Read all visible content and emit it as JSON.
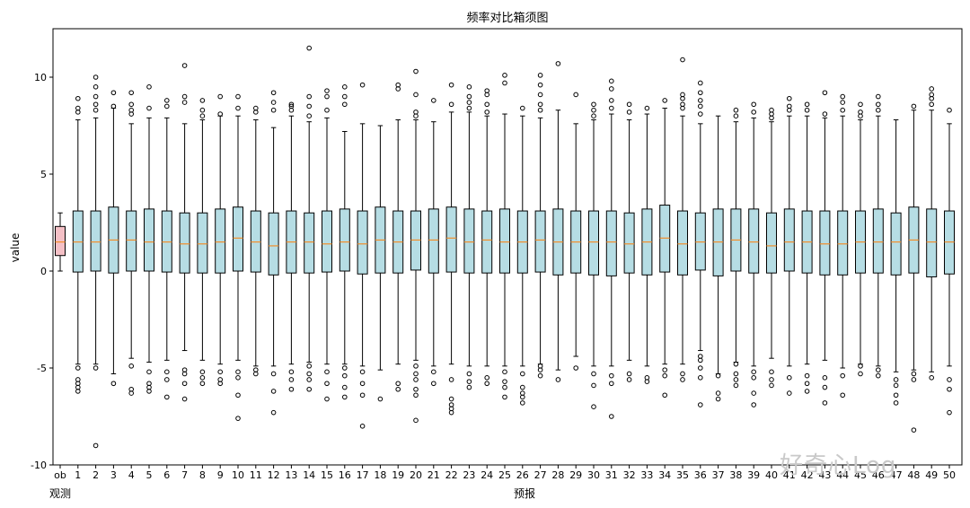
{
  "chart_data": {
    "type": "boxplot",
    "title": "频率对比箱须图",
    "ylabel": "value",
    "xlabel_left": "观测",
    "xlabel_center": "预报",
    "ylim": [
      -10,
      12.5
    ],
    "yticks": [
      -10,
      -5,
      0,
      5,
      10
    ],
    "colors": {
      "observed_fill": "#f4c0c6",
      "forecast_fill": "#b6dde4",
      "median": "#f28e2b",
      "frame": "#000000"
    },
    "categories": [
      "ob",
      "1",
      "2",
      "3",
      "4",
      "5",
      "6",
      "7",
      "8",
      "9",
      "10",
      "11",
      "12",
      "13",
      "14",
      "15",
      "16",
      "17",
      "18",
      "19",
      "20",
      "21",
      "22",
      "23",
      "24",
      "25",
      "26",
      "27",
      "28",
      "29",
      "30",
      "31",
      "32",
      "33",
      "34",
      "35",
      "36",
      "37",
      "38",
      "39",
      "40",
      "41",
      "42",
      "43",
      "44",
      "45",
      "46",
      "47",
      "48",
      "49",
      "50"
    ],
    "boxes": [
      {
        "label": "ob",
        "min": 0.0,
        "q1": 0.8,
        "median": 1.5,
        "q3": 2.3,
        "max": 3.0,
        "outliers": []
      },
      {
        "label": "1",
        "min": -4.8,
        "q1": -0.05,
        "median": 1.5,
        "q3": 3.1,
        "max": 7.8,
        "outliers": [
          8.2,
          8.4,
          8.9,
          -5.0,
          -5.6,
          -5.8,
          -6.0,
          -6.2
        ]
      },
      {
        "label": "2",
        "min": -4.8,
        "q1": 0.0,
        "median": 1.5,
        "q3": 3.1,
        "max": 7.9,
        "outliers": [
          8.3,
          8.6,
          9.0,
          9.5,
          10.0,
          -5.0,
          -9.0
        ]
      },
      {
        "label": "3",
        "min": -5.3,
        "q1": -0.1,
        "median": 1.6,
        "q3": 3.3,
        "max": 8.4,
        "outliers": [
          8.5,
          9.2,
          -5.8
        ]
      },
      {
        "label": "4",
        "min": -4.5,
        "q1": 0.0,
        "median": 1.6,
        "q3": 3.1,
        "max": 7.6,
        "outliers": [
          8.1,
          8.3,
          8.6,
          9.2,
          -4.9,
          -6.1,
          -6.3
        ]
      },
      {
        "label": "5",
        "min": -4.7,
        "q1": 0.0,
        "median": 1.5,
        "q3": 3.2,
        "max": 7.9,
        "outliers": [
          8.4,
          9.5,
          -5.2,
          -5.8,
          -6.0,
          -6.2
        ]
      },
      {
        "label": "6",
        "min": -4.6,
        "q1": -0.05,
        "median": 1.5,
        "q3": 3.1,
        "max": 7.9,
        "outliers": [
          8.5,
          8.8,
          -5.2,
          -5.6,
          -6.5
        ]
      },
      {
        "label": "7",
        "min": -4.1,
        "q1": -0.1,
        "median": 1.4,
        "q3": 3.0,
        "max": 7.6,
        "outliers": [
          8.7,
          9.0,
          10.6,
          -5.1,
          -5.3,
          -5.8,
          -6.6
        ]
      },
      {
        "label": "8",
        "min": -4.6,
        "q1": -0.1,
        "median": 1.4,
        "q3": 3.0,
        "max": 7.8,
        "outliers": [
          8.0,
          8.3,
          8.8,
          -5.2,
          -5.5,
          -5.8
        ]
      },
      {
        "label": "9",
        "min": -4.8,
        "q1": -0.1,
        "median": 1.5,
        "q3": 3.2,
        "max": 8.0,
        "outliers": [
          8.1,
          9.0,
          -5.2,
          -5.6,
          -5.8
        ]
      },
      {
        "label": "10",
        "min": -4.6,
        "q1": 0.0,
        "median": 1.7,
        "q3": 3.3,
        "max": 8.0,
        "outliers": [
          8.4,
          9.0,
          -5.2,
          -5.5,
          -6.4,
          -7.6
        ]
      },
      {
        "label": "11",
        "min": -4.9,
        "q1": -0.05,
        "median": 1.5,
        "q3": 3.1,
        "max": 7.8,
        "outliers": [
          8.2,
          8.4,
          -5.1,
          -5.3
        ]
      },
      {
        "label": "12",
        "min": -4.9,
        "q1": -0.2,
        "median": 1.3,
        "q3": 3.0,
        "max": 7.4,
        "outliers": [
          8.3,
          8.7,
          9.2,
          -5.3,
          -6.2,
          -7.3
        ]
      },
      {
        "label": "13",
        "min": -4.8,
        "q1": -0.1,
        "median": 1.5,
        "q3": 3.1,
        "max": 8.0,
        "outliers": [
          8.3,
          8.5,
          8.6,
          -5.2,
          -5.6,
          -6.1
        ]
      },
      {
        "label": "14",
        "min": -4.7,
        "q1": -0.1,
        "median": 1.5,
        "q3": 3.0,
        "max": 7.7,
        "outliers": [
          8.0,
          8.5,
          9.0,
          11.5,
          -4.9,
          -5.3,
          -5.6,
          -6.1
        ]
      },
      {
        "label": "15",
        "min": -4.8,
        "q1": -0.05,
        "median": 1.4,
        "q3": 3.1,
        "max": 7.9,
        "outliers": [
          8.3,
          9.0,
          9.3,
          -5.2,
          -5.8,
          -6.6
        ]
      },
      {
        "label": "16",
        "min": -4.8,
        "q1": 0.0,
        "median": 1.5,
        "q3": 3.2,
        "max": 7.2,
        "outliers": [
          8.6,
          9.0,
          9.5,
          -5.0,
          -5.4,
          -6.0,
          -6.5
        ]
      },
      {
        "label": "17",
        "min": -4.9,
        "q1": -0.15,
        "median": 1.4,
        "q3": 3.1,
        "max": 7.6,
        "outliers": [
          9.6,
          -5.2,
          -5.8,
          -6.4,
          -8.0
        ]
      },
      {
        "label": "18",
        "min": -5.1,
        "q1": -0.1,
        "median": 1.6,
        "q3": 3.3,
        "max": 7.5,
        "outliers": [
          -6.6
        ]
      },
      {
        "label": "19",
        "min": -4.8,
        "q1": -0.1,
        "median": 1.5,
        "q3": 3.1,
        "max": 7.8,
        "outliers": [
          9.4,
          9.6,
          -5.8,
          -6.1
        ]
      },
      {
        "label": "20",
        "min": -4.6,
        "q1": 0.05,
        "median": 1.6,
        "q3": 3.1,
        "max": 7.8,
        "outliers": [
          8.0,
          8.2,
          9.1,
          10.3,
          -4.9,
          -5.3,
          -5.6,
          -6.1,
          -6.4,
          -7.7
        ]
      },
      {
        "label": "21",
        "min": -4.9,
        "q1": -0.1,
        "median": 1.6,
        "q3": 3.2,
        "max": 7.7,
        "outliers": [
          8.8,
          -5.2,
          -5.8
        ]
      },
      {
        "label": "22",
        "min": -4.8,
        "q1": -0.05,
        "median": 1.7,
        "q3": 3.3,
        "max": 8.2,
        "outliers": [
          8.6,
          9.6,
          -5.6,
          -6.6,
          -6.9,
          -7.1,
          -7.3
        ]
      },
      {
        "label": "23",
        "min": -4.9,
        "q1": -0.1,
        "median": 1.5,
        "q3": 3.2,
        "max": 8.2,
        "outliers": [
          8.4,
          8.7,
          9.0,
          9.5,
          -5.3,
          -5.7,
          -6.0
        ]
      },
      {
        "label": "24",
        "min": -4.9,
        "q1": -0.1,
        "median": 1.6,
        "q3": 3.1,
        "max": 8.0,
        "outliers": [
          8.2,
          8.6,
          9.1,
          9.3,
          -5.5,
          -5.8
        ]
      },
      {
        "label": "25",
        "min": -4.9,
        "q1": -0.1,
        "median": 1.5,
        "q3": 3.2,
        "max": 8.1,
        "outliers": [
          9.7,
          10.1,
          -5.2,
          -5.7,
          -6.0,
          -6.5
        ]
      },
      {
        "label": "26",
        "min": -4.9,
        "q1": -0.1,
        "median": 1.5,
        "q3": 3.1,
        "max": 8.0,
        "outliers": [
          8.4,
          -5.3,
          -6.0,
          -6.3,
          -6.5,
          -6.8
        ]
      },
      {
        "label": "27",
        "min": -4.8,
        "q1": -0.05,
        "median": 1.6,
        "q3": 3.1,
        "max": 7.9,
        "outliers": [
          8.3,
          8.6,
          9.1,
          9.6,
          10.1,
          -4.9,
          -5.1,
          -5.4
        ]
      },
      {
        "label": "28",
        "min": -5.1,
        "q1": -0.2,
        "median": 1.5,
        "q3": 3.2,
        "max": 8.3,
        "outliers": [
          10.7,
          -5.6
        ]
      },
      {
        "label": "29",
        "min": -4.4,
        "q1": -0.1,
        "median": 1.5,
        "q3": 3.1,
        "max": 7.6,
        "outliers": [
          9.1,
          -5.0
        ]
      },
      {
        "label": "30",
        "min": -4.9,
        "q1": -0.2,
        "median": 1.5,
        "q3": 3.1,
        "max": 7.8,
        "outliers": [
          8.0,
          8.3,
          8.6,
          -5.3,
          -5.9,
          -7.0
        ]
      },
      {
        "label": "31",
        "min": -4.9,
        "q1": -0.25,
        "median": 1.5,
        "q3": 3.1,
        "max": 8.1,
        "outliers": [
          8.4,
          8.8,
          9.4,
          9.8,
          -5.4,
          -5.8,
          -7.5
        ]
      },
      {
        "label": "32",
        "min": -4.6,
        "q1": -0.1,
        "median": 1.4,
        "q3": 3.0,
        "max": 7.8,
        "outliers": [
          8.2,
          8.6,
          -5.3,
          -5.6
        ]
      },
      {
        "label": "33",
        "min": -4.9,
        "q1": -0.2,
        "median": 1.5,
        "q3": 3.2,
        "max": 8.1,
        "outliers": [
          8.4,
          -5.5,
          -5.7
        ]
      },
      {
        "label": "34",
        "min": -4.8,
        "q1": -0.05,
        "median": 1.7,
        "q3": 3.4,
        "max": 8.4,
        "outliers": [
          8.8,
          -5.1,
          -5.4,
          -6.4
        ]
      },
      {
        "label": "35",
        "min": -4.8,
        "q1": -0.2,
        "median": 1.4,
        "q3": 3.1,
        "max": 8.0,
        "outliers": [
          8.4,
          8.6,
          8.9,
          9.1,
          10.9,
          -5.3,
          -5.6
        ]
      },
      {
        "label": "36",
        "min": -4.1,
        "q1": 0.05,
        "median": 1.5,
        "q3": 3.0,
        "max": 7.6,
        "outliers": [
          8.1,
          8.5,
          8.8,
          9.2,
          9.7,
          -4.4,
          -4.6,
          -5.0,
          -5.5,
          -6.9
        ]
      },
      {
        "label": "37",
        "min": -5.3,
        "q1": -0.25,
        "median": 1.5,
        "q3": 3.2,
        "max": 8.0,
        "outliers": [
          -5.4,
          -6.3,
          -6.6
        ]
      },
      {
        "label": "38",
        "min": -4.7,
        "q1": 0.0,
        "median": 1.6,
        "q3": 3.2,
        "max": 7.7,
        "outliers": [
          8.0,
          8.3,
          -4.8,
          -5.3,
          -5.6,
          -5.9
        ]
      },
      {
        "label": "39",
        "min": -4.9,
        "q1": -0.1,
        "median": 1.5,
        "q3": 3.2,
        "max": 7.9,
        "outliers": [
          8.2,
          8.6,
          -5.2,
          -5.5,
          -6.3,
          -6.9
        ]
      },
      {
        "label": "40",
        "min": -4.5,
        "q1": -0.1,
        "median": 1.3,
        "q3": 3.0,
        "max": 7.7,
        "outliers": [
          7.9,
          8.1,
          8.3,
          -5.2,
          -5.6,
          -5.9
        ]
      },
      {
        "label": "41",
        "min": -4.9,
        "q1": 0.0,
        "median": 1.5,
        "q3": 3.2,
        "max": 8.0,
        "outliers": [
          8.3,
          8.5,
          8.9,
          -5.5,
          -6.3
        ]
      },
      {
        "label": "42",
        "min": -4.8,
        "q1": -0.1,
        "median": 1.5,
        "q3": 3.1,
        "max": 8.0,
        "outliers": [
          8.3,
          8.6,
          -5.4,
          -5.8,
          -6.2
        ]
      },
      {
        "label": "43",
        "min": -4.6,
        "q1": -0.2,
        "median": 1.4,
        "q3": 3.1,
        "max": 7.9,
        "outliers": [
          8.1,
          9.2,
          -5.5,
          -6.0,
          -6.8
        ]
      },
      {
        "label": "44",
        "min": -5.0,
        "q1": -0.2,
        "median": 1.4,
        "q3": 3.1,
        "max": 8.0,
        "outliers": [
          8.3,
          8.7,
          9.0,
          -5.4,
          -6.4
        ]
      },
      {
        "label": "45",
        "min": -4.8,
        "q1": -0.1,
        "median": 1.5,
        "q3": 3.1,
        "max": 7.8,
        "outliers": [
          8.0,
          8.2,
          8.6,
          -4.9,
          -5.3
        ]
      },
      {
        "label": "46",
        "min": -4.9,
        "q1": -0.1,
        "median": 1.5,
        "q3": 3.2,
        "max": 8.0,
        "outliers": [
          8.3,
          8.6,
          9.0,
          -5.1,
          -5.4
        ]
      },
      {
        "label": "47",
        "min": -5.2,
        "q1": -0.2,
        "median": 1.5,
        "q3": 3.0,
        "max": 7.8,
        "outliers": [
          -5.6,
          -5.9,
          -6.4,
          -6.8
        ]
      },
      {
        "label": "48",
        "min": -5.1,
        "q1": -0.1,
        "median": 1.6,
        "q3": 3.3,
        "max": 8.3,
        "outliers": [
          8.5,
          -5.3,
          -5.6,
          -8.2
        ]
      },
      {
        "label": "49",
        "min": -5.2,
        "q1": -0.3,
        "median": 1.5,
        "q3": 3.2,
        "max": 8.3,
        "outliers": [
          8.6,
          8.9,
          9.1,
          9.4,
          -5.5
        ]
      },
      {
        "label": "50",
        "min": -4.9,
        "q1": -0.15,
        "median": 1.5,
        "q3": 3.1,
        "max": 7.6,
        "outliers": [
          8.3,
          -5.6,
          -6.1,
          -7.3
        ]
      }
    ]
  },
  "watermark": "好奇心Log"
}
